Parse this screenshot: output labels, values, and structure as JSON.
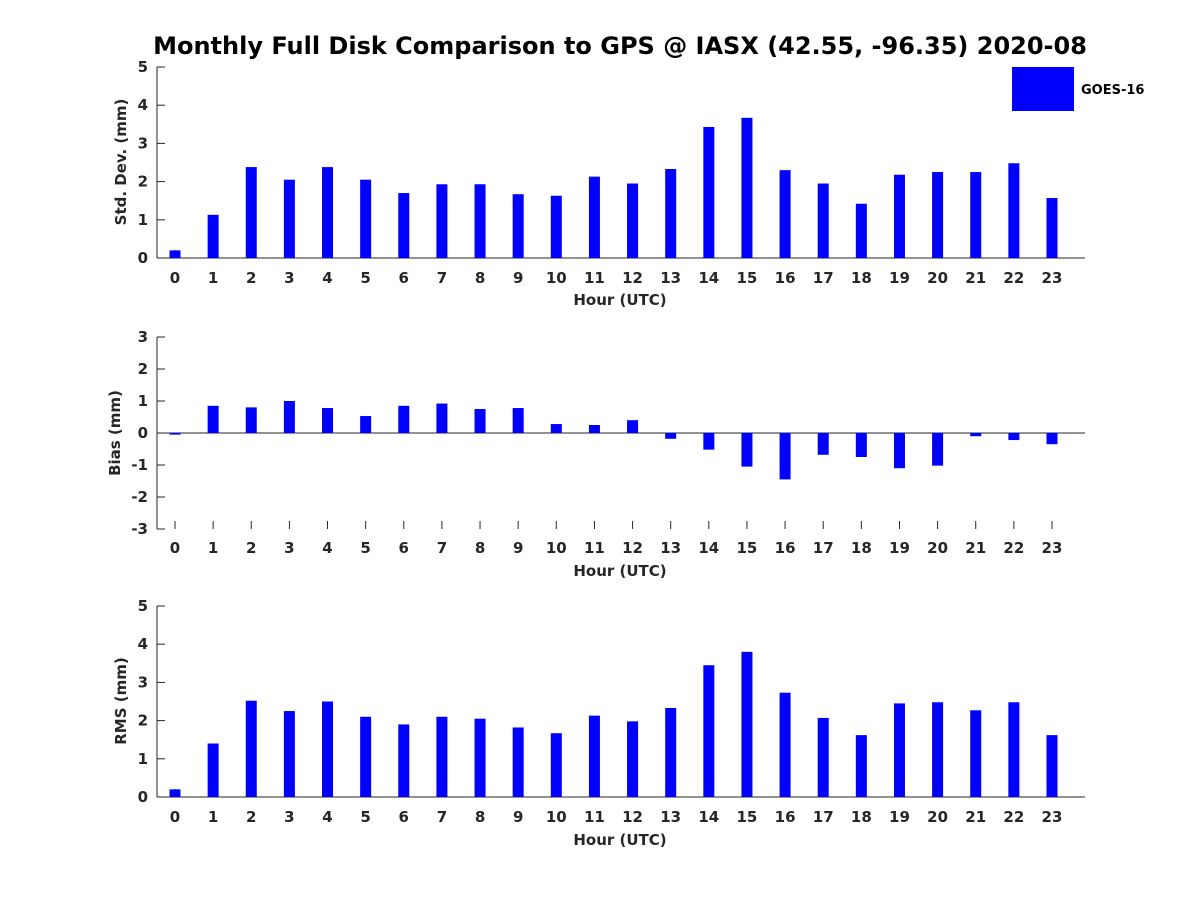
{
  "figure": {
    "title": "Monthly Full Disk Comparison to GPS @ IASX (42.55, -96.35) 2020-08",
    "legend": {
      "label": "GOES-16",
      "color": "#0000ff",
      "placement": "top-right"
    }
  },
  "chart_data": [
    {
      "type": "bar",
      "name": "std-dev",
      "xlabel": "Hour (UTC)",
      "ylabel": "Std. Dev. (mm)",
      "ylim": [
        0,
        5
      ],
      "yticks": [
        0,
        1,
        2,
        3,
        4,
        5
      ],
      "categories": [
        "0",
        "1",
        "2",
        "3",
        "4",
        "5",
        "6",
        "7",
        "8",
        "9",
        "10",
        "11",
        "12",
        "13",
        "14",
        "15",
        "16",
        "17",
        "18",
        "19",
        "20",
        "21",
        "22",
        "23"
      ],
      "series": [
        {
          "name": "GOES-16",
          "color": "#0000ff",
          "values": [
            0.2,
            1.13,
            2.38,
            2.05,
            2.38,
            2.05,
            1.7,
            1.93,
            1.93,
            1.67,
            1.63,
            2.13,
            1.95,
            2.33,
            3.43,
            3.67,
            2.3,
            1.95,
            1.42,
            2.18,
            2.25,
            2.25,
            2.48,
            1.57
          ]
        }
      ]
    },
    {
      "type": "bar",
      "name": "bias",
      "xlabel": "Hour (UTC)",
      "ylabel": "Bias (mm)",
      "ylim": [
        -3,
        3
      ],
      "yticks": [
        -3,
        -2,
        -1,
        0,
        1,
        2,
        3
      ],
      "categories": [
        "0",
        "1",
        "2",
        "3",
        "4",
        "5",
        "6",
        "7",
        "8",
        "9",
        "10",
        "11",
        "12",
        "13",
        "14",
        "15",
        "16",
        "17",
        "18",
        "19",
        "20",
        "21",
        "22",
        "23"
      ],
      "series": [
        {
          "name": "GOES-16",
          "color": "#0000ff",
          "values": [
            -0.05,
            0.85,
            0.8,
            1.0,
            0.78,
            0.53,
            0.85,
            0.92,
            0.75,
            0.78,
            0.28,
            0.25,
            0.4,
            -0.18,
            -0.52,
            -1.05,
            -1.45,
            -0.68,
            -0.75,
            -1.1,
            -1.02,
            -0.1,
            -0.22,
            -0.35
          ]
        }
      ]
    },
    {
      "type": "bar",
      "name": "rms",
      "xlabel": "Hour (UTC)",
      "ylabel": "RMS (mm)",
      "ylim": [
        0,
        5
      ],
      "yticks": [
        0,
        1,
        2,
        3,
        4,
        5
      ],
      "categories": [
        "0",
        "1",
        "2",
        "3",
        "4",
        "5",
        "6",
        "7",
        "8",
        "9",
        "10",
        "11",
        "12",
        "13",
        "14",
        "15",
        "16",
        "17",
        "18",
        "19",
        "20",
        "21",
        "22",
        "23"
      ],
      "series": [
        {
          "name": "GOES-16",
          "color": "#0000ff",
          "values": [
            0.2,
            1.4,
            2.52,
            2.25,
            2.5,
            2.1,
            1.9,
            2.1,
            2.05,
            1.82,
            1.67,
            2.13,
            1.98,
            2.33,
            3.45,
            3.8,
            2.73,
            2.07,
            1.62,
            2.45,
            2.48,
            2.27,
            2.48,
            1.62
          ]
        }
      ]
    }
  ]
}
